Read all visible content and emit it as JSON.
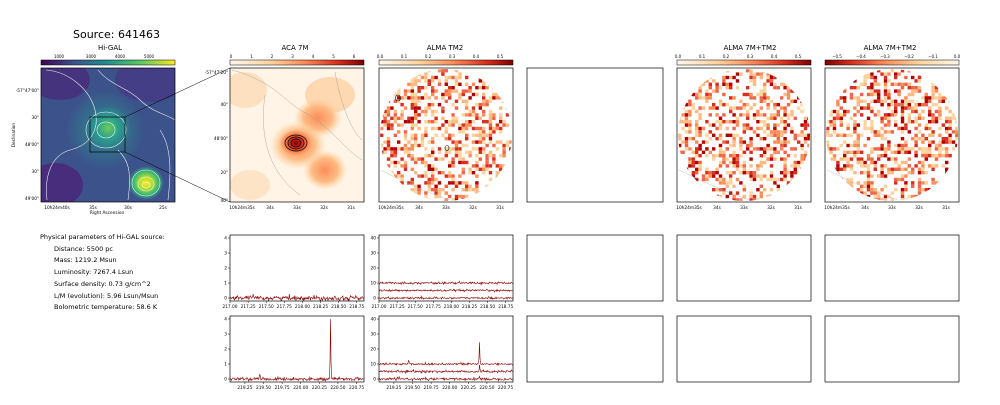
{
  "source_title": "Source: 641463",
  "panels": {
    "higal": {
      "title": "Hi-GAL",
      "colorbar_ticks": [
        "1000",
        "3000",
        "4000",
        "5000"
      ],
      "xlabel": "Right Ascension",
      "ylabel": "Declination",
      "x_ticks": [
        "10h24m40s",
        "35s",
        "30s",
        "25s"
      ],
      "y_ticks": [
        "-57°47'00\"",
        "30\"",
        "48'00\"",
        "30\"",
        "49'00\""
      ]
    },
    "aca7m": {
      "title": "ACA 7M",
      "colorbar_ticks": [
        "0",
        "1",
        "2",
        "3",
        "4",
        "5",
        "6"
      ],
      "x_ticks": [
        "10h24m35s",
        "34s",
        "33s",
        "32s",
        "31s"
      ],
      "y_ticks": [
        "-57°47'20\"",
        "40\"",
        "48'00\"",
        "20\"",
        "40\""
      ]
    },
    "almatm2": {
      "title": "ALMA TM2",
      "colorbar_ticks": [
        "0.0",
        "0.1",
        "0.2",
        "0.3",
        "0.4",
        "0.5"
      ],
      "x_ticks": [
        "10h24m35s",
        "34s",
        "33s",
        "32s",
        "31s"
      ]
    },
    "alma7mtm2_a": {
      "title": "ALMA 7M+TM2",
      "colorbar_ticks": [
        "0.0",
        "0.1",
        "0.2",
        "0.3",
        "0.4",
        "0.5"
      ],
      "x_ticks": [
        "10h24m35s",
        "34s",
        "33s",
        "32s",
        "31s"
      ]
    },
    "alma7mtm2_b": {
      "title": "ALMA 7M+TM2",
      "colorbar_ticks": [
        "−0.5",
        "−0.4",
        "−0.3",
        "−0.2",
        "−0.1",
        "0.0"
      ],
      "x_ticks": [
        "10h24m35s",
        "34s",
        "33s",
        "32s",
        "31s"
      ]
    }
  },
  "params": {
    "header": "Physical parameters of Hi-GAL source:",
    "lines": [
      "Distance: 5500 pc",
      "Mass: 1219.2 Msun",
      "Luminosity: 7267.4 Lsun",
      "Surface density: 0.73 g/cm^2",
      "L/M (evolution): 5.96 Lsun/Msun",
      "Bolometric temperature: 58.6 K"
    ]
  },
  "colors": {
    "spectrum_line": "#8b0000",
    "frame": "#000000",
    "contour": "#ffffff"
  },
  "chart_data": [
    {
      "type": "line",
      "panel": "ACA 7M spectrum (upper)",
      "x_ticks": [
        217.0,
        217.25,
        217.5,
        217.75,
        218.0,
        218.25,
        218.5,
        218.75
      ],
      "y_ticks": [
        0,
        1,
        2,
        3,
        4
      ],
      "xlim": [
        217.0,
        218.85
      ],
      "ylim": [
        -0.2,
        4.2
      ],
      "series": [
        {
          "baseline": 0.0,
          "noise": 0.08
        }
      ]
    },
    {
      "type": "line",
      "panel": "ALMA TM2 spectrum (upper)",
      "x_ticks": [
        217.0,
        217.25,
        217.5,
        217.75,
        218.0,
        218.25,
        218.5,
        218.75
      ],
      "y_ticks": [
        0,
        10,
        20,
        30,
        40
      ],
      "xlim": [
        217.0,
        218.85
      ],
      "ylim": [
        -2,
        42
      ],
      "series": [
        {
          "baseline": 10,
          "noise": 0.35
        },
        {
          "baseline": 5,
          "noise": 0.35
        },
        {
          "baseline": 0,
          "noise": 0.35
        }
      ]
    },
    {
      "type": "line",
      "panel": "ACA 7M spectrum (lower)",
      "x_ticks": [
        219.25,
        219.5,
        219.75,
        220.0,
        220.25,
        220.5,
        220.75
      ],
      "y_ticks": [
        0,
        1,
        2,
        3,
        4
      ],
      "xlim": [
        219.05,
        220.85
      ],
      "ylim": [
        -0.2,
        4.2
      ],
      "series": [
        {
          "baseline": 0.0,
          "noise": 0.05,
          "peaks": [
            [
              219.45,
              0.3
            ],
            [
              220.4,
              3.95
            ]
          ]
        }
      ]
    },
    {
      "type": "line",
      "panel": "ALMA TM2 spectrum (lower)",
      "x_ticks": [
        219.25,
        219.5,
        219.75,
        220.0,
        220.25,
        220.5,
        220.75
      ],
      "y_ticks": [
        0,
        10,
        20,
        30,
        40
      ],
      "xlim": [
        219.05,
        220.85
      ],
      "ylim": [
        -2,
        42
      ],
      "series": [
        {
          "baseline": 10,
          "noise": 0.4,
          "peaks": [
            [
              219.45,
              2
            ],
            [
              220.4,
              14
            ]
          ]
        },
        {
          "baseline": 5,
          "noise": 0.4,
          "peaks": [
            [
              220.4,
              4
            ]
          ]
        },
        {
          "baseline": 0,
          "noise": 0.4,
          "peaks": [
            [
              220.4,
              2
            ]
          ]
        }
      ]
    }
  ]
}
